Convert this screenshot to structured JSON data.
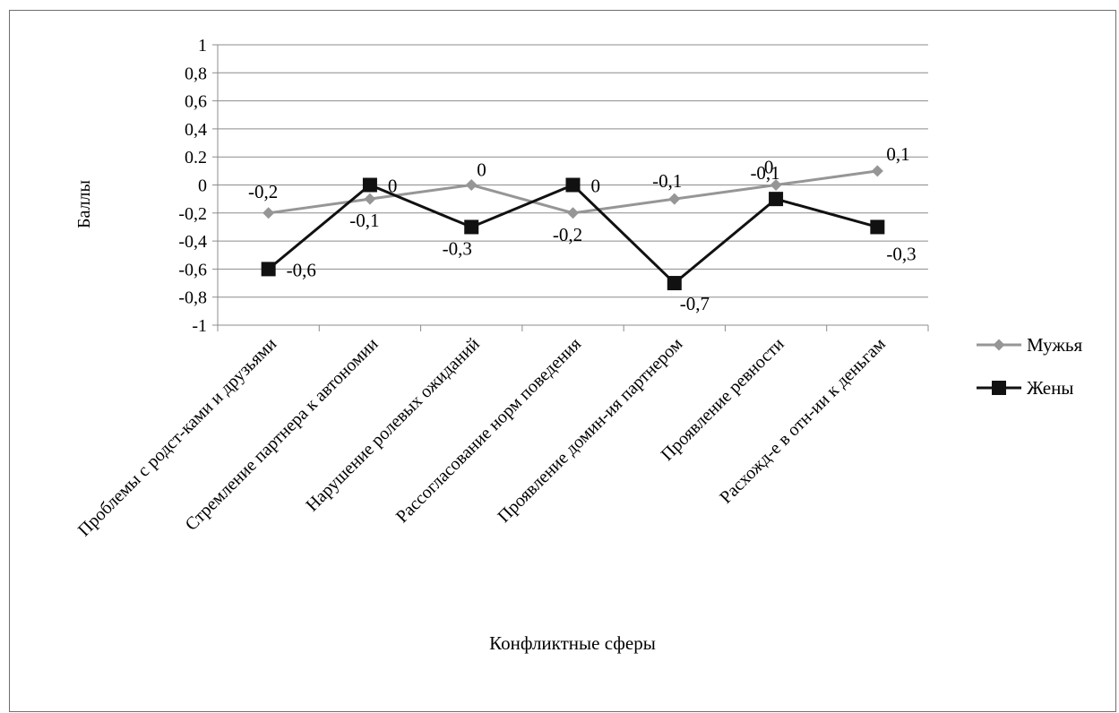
{
  "chart_data": {
    "type": "line",
    "title": "",
    "xlabel": "Конфликтные сферы",
    "ylabel": "Баллы",
    "ylim": [
      -1,
      1
    ],
    "ytick_step": 0.2,
    "yticks": [
      "1",
      "0,8",
      "0,6",
      "0,4",
      "0.2",
      "0",
      "-0,2",
      "-0,4",
      "-0,6",
      "-0,8",
      "-1"
    ],
    "grid": true,
    "legend_position": "right",
    "categories": [
      "Проблемы с родст-ками и друзьями",
      "Стремление партнера к автономии",
      "Нарушение ролевых ожиданий",
      "Рассогласование норм поведения",
      "Проявление домин-ия партнером",
      "Проявление ревности",
      "Расхожд-е в отн-ии к деньгам"
    ],
    "series": [
      {
        "name": "Мужья",
        "color": "#969696",
        "marker": "diamond",
        "values": [
          -0.2,
          -0.1,
          0,
          -0.2,
          -0.1,
          0,
          0.1
        ],
        "labels": [
          "-0,2",
          "-0,1",
          "0",
          "-0,2",
          "-0,1",
          "0",
          "0,1"
        ]
      },
      {
        "name": "Жены",
        "color": "#111111",
        "marker": "square",
        "values": [
          -0.6,
          0,
          -0.3,
          0,
          -0.7,
          -0.1,
          -0.3
        ],
        "labels": [
          "-0,6",
          "0",
          "-0,3",
          "0",
          "-0,7",
          "-0,1",
          "-0,3"
        ]
      }
    ]
  }
}
